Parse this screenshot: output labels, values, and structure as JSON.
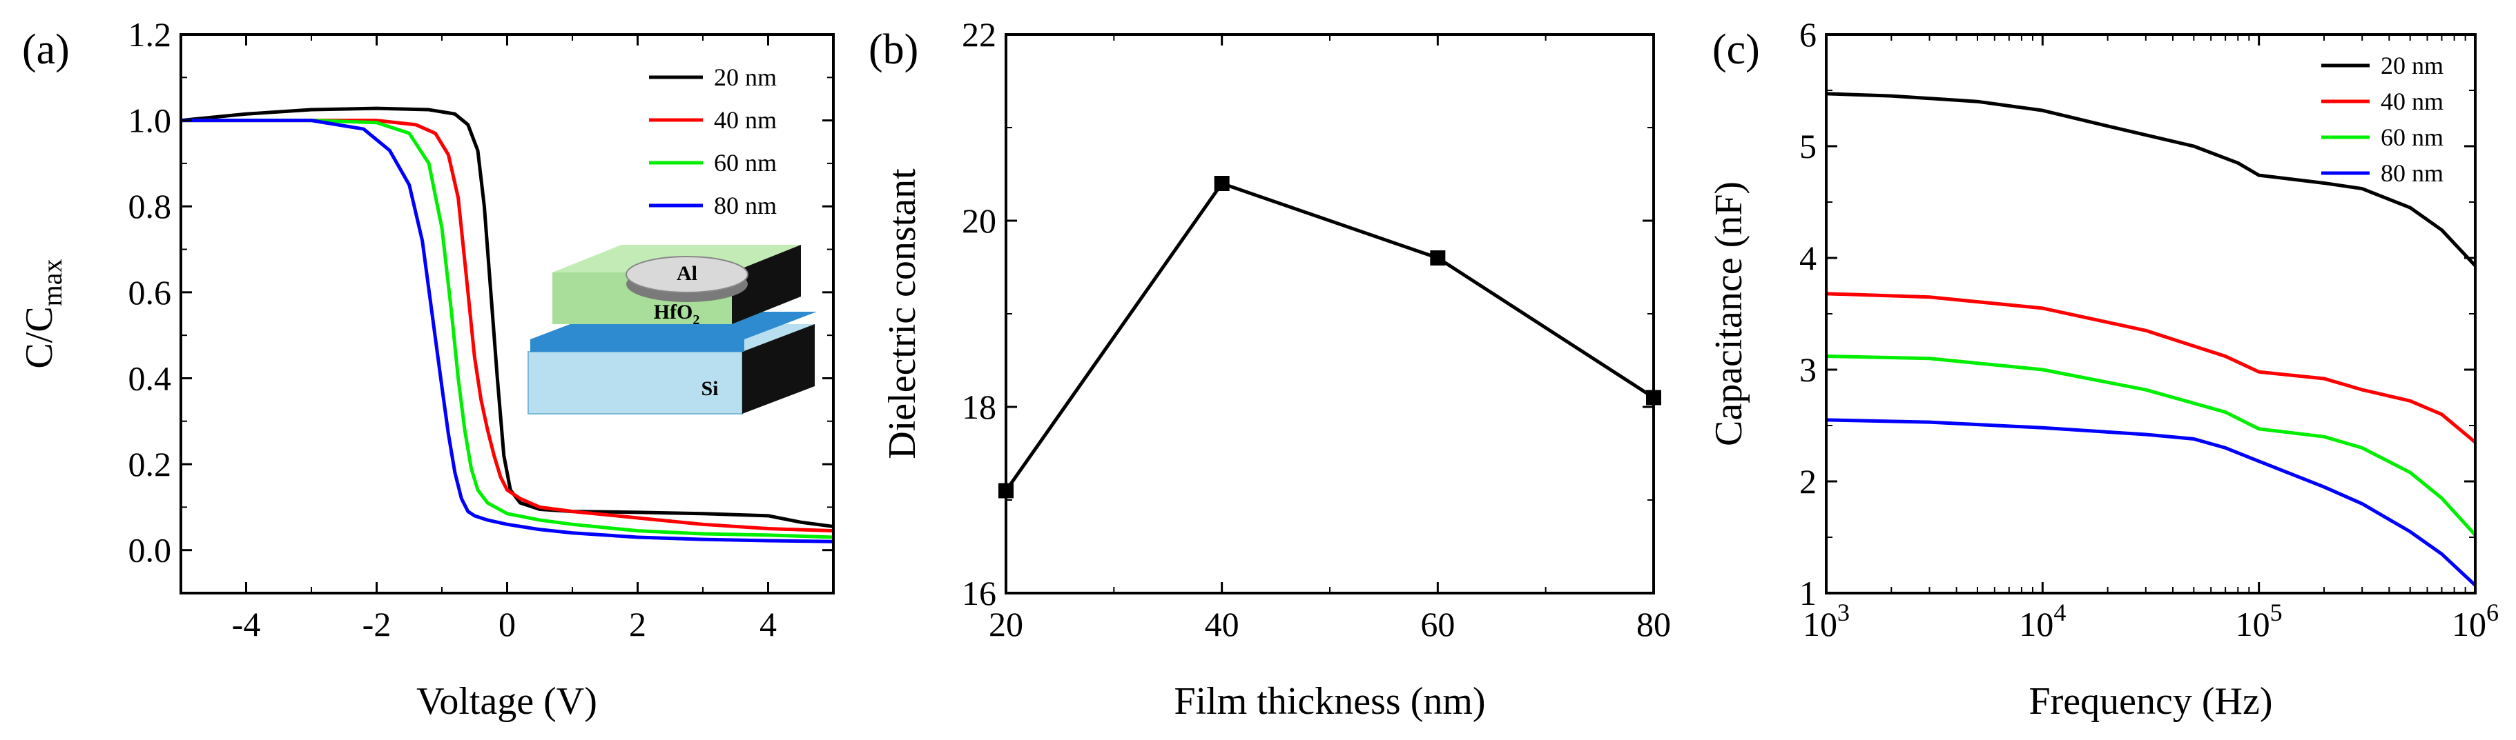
{
  "chart_data": [
    {
      "panel": "(a)",
      "type": "line",
      "xlabel": "Voltage (V)",
      "ylabel": "C/C",
      "ylabel_sub": "max",
      "xlim": [
        -5,
        5
      ],
      "ylim": [
        -0.1,
        1.2
      ],
      "xticks": [
        -4,
        -2,
        0,
        2,
        4
      ],
      "yticks": [
        0.0,
        0.2,
        0.4,
        0.6,
        0.8,
        1.0,
        1.2
      ],
      "xtick_labels": [
        "-4",
        "-2",
        "0",
        "2",
        "4"
      ],
      "ytick_labels": [
        "0.0",
        "0.2",
        "0.4",
        "0.6",
        "0.8",
        "1.0",
        "1.2"
      ],
      "legend_position": "top-right",
      "series": [
        {
          "name": "20 nm",
          "color": "#000000",
          "x": [
            -5,
            -4,
            -3,
            -2,
            -1.2,
            -0.8,
            -0.6,
            -0.45,
            -0.35,
            -0.25,
            -0.15,
            -0.05,
            0.05,
            0.2,
            0.5,
            1,
            2,
            3,
            4,
            4.5,
            5
          ],
          "y": [
            1.0,
            1.015,
            1.025,
            1.028,
            1.025,
            1.015,
            0.99,
            0.93,
            0.8,
            0.6,
            0.4,
            0.22,
            0.14,
            0.11,
            0.095,
            0.09,
            0.088,
            0.085,
            0.08,
            0.065,
            0.055
          ]
        },
        {
          "name": "40 nm",
          "color": "#ff0000",
          "x": [
            -5,
            -3,
            -2,
            -1.4,
            -1.1,
            -0.9,
            -0.75,
            -0.6,
            -0.5,
            -0.4,
            -0.3,
            -0.2,
            -0.1,
            0,
            0.2,
            0.5,
            1,
            2,
            3,
            4,
            5
          ],
          "y": [
            1.0,
            1.0,
            1.0,
            0.99,
            0.97,
            0.92,
            0.82,
            0.6,
            0.45,
            0.35,
            0.28,
            0.22,
            0.17,
            0.14,
            0.12,
            0.1,
            0.09,
            0.075,
            0.06,
            0.05,
            0.045
          ]
        },
        {
          "name": "60 nm",
          "color": "#00ee00",
          "x": [
            -5,
            -3,
            -2,
            -1.5,
            -1.2,
            -1.0,
            -0.85,
            -0.75,
            -0.65,
            -0.55,
            -0.45,
            -0.3,
            0,
            0.5,
            1,
            2,
            3,
            4,
            5
          ],
          "y": [
            1.0,
            1.0,
            0.995,
            0.97,
            0.9,
            0.75,
            0.55,
            0.4,
            0.28,
            0.19,
            0.14,
            0.11,
            0.085,
            0.07,
            0.06,
            0.045,
            0.038,
            0.035,
            0.03
          ]
        },
        {
          "name": "80 nm",
          "color": "#0000ff",
          "x": [
            -5,
            -3,
            -2.2,
            -1.8,
            -1.5,
            -1.3,
            -1.15,
            -1.0,
            -0.9,
            -0.8,
            -0.7,
            -0.6,
            -0.5,
            -0.3,
            0,
            0.5,
            1,
            2,
            3,
            4,
            5
          ],
          "y": [
            1.0,
            1.0,
            0.98,
            0.93,
            0.85,
            0.72,
            0.55,
            0.38,
            0.27,
            0.18,
            0.12,
            0.09,
            0.08,
            0.07,
            0.06,
            0.048,
            0.04,
            0.03,
            0.025,
            0.022,
            0.02
          ]
        }
      ],
      "inset_labels": {
        "top": "Al",
        "middle": "HfO",
        "middle_sub": "2",
        "bottom": "Si"
      }
    },
    {
      "panel": "(b)",
      "type": "line",
      "xlabel": "Film thickness (nm)",
      "ylabel": "Dielectric constant",
      "xlim": [
        20,
        80
      ],
      "ylim": [
        16,
        22
      ],
      "xticks": [
        20,
        40,
        60,
        80
      ],
      "yticks": [
        16,
        18,
        20,
        22
      ],
      "xtick_labels": [
        "20",
        "40",
        "60",
        "80"
      ],
      "ytick_labels": [
        "16",
        "18",
        "20",
        "22"
      ],
      "series": [
        {
          "name": "Dielectric constant",
          "color": "#000000",
          "marker": "square",
          "x": [
            20,
            40,
            60,
            80
          ],
          "y": [
            17.1,
            20.4,
            19.6,
            18.1
          ]
        }
      ]
    },
    {
      "panel": "(c)",
      "type": "line",
      "xscale": "log",
      "xlabel": "Frequency (Hz)",
      "ylabel": "Capacitance (nF)",
      "xlim": [
        1000,
        1000000
      ],
      "ylim": [
        1,
        6
      ],
      "xticks": [
        1000,
        10000,
        100000,
        1000000
      ],
      "xtick_base": [
        "10",
        "10",
        "10",
        "10"
      ],
      "xtick_exp": [
        "3",
        "4",
        "5",
        "6"
      ],
      "yticks": [
        1,
        2,
        3,
        4,
        5,
        6
      ],
      "ytick_labels": [
        "1",
        "2",
        "3",
        "4",
        "5",
        "6"
      ],
      "legend_position": "top-right",
      "series": [
        {
          "name": "20 nm",
          "color": "#000000",
          "x": [
            1000,
            2000,
            5000,
            10000,
            20000,
            50000,
            80000,
            100000,
            200000,
            300000,
            500000,
            700000,
            1000000
          ],
          "y": [
            5.47,
            5.45,
            5.4,
            5.32,
            5.18,
            5.0,
            4.85,
            4.74,
            4.67,
            4.62,
            4.45,
            4.25,
            3.93
          ]
        },
        {
          "name": "40 nm",
          "color": "#ff0000",
          "x": [
            1000,
            3000,
            10000,
            30000,
            70000,
            100000,
            200000,
            300000,
            500000,
            700000,
            1000000
          ],
          "y": [
            3.68,
            3.65,
            3.55,
            3.35,
            3.12,
            2.98,
            2.92,
            2.82,
            2.72,
            2.6,
            2.35
          ]
        },
        {
          "name": "60 nm",
          "color": "#00ee00",
          "x": [
            1000,
            3000,
            10000,
            30000,
            70000,
            100000,
            200000,
            300000,
            500000,
            700000,
            1000000
          ],
          "y": [
            3.12,
            3.1,
            3.0,
            2.82,
            2.62,
            2.47,
            2.4,
            2.3,
            2.08,
            1.85,
            1.52
          ]
        },
        {
          "name": "80 nm",
          "color": "#0000ff",
          "x": [
            1000,
            3000,
            10000,
            30000,
            50000,
            70000,
            100000,
            200000,
            300000,
            500000,
            700000,
            1000000
          ],
          "y": [
            2.55,
            2.53,
            2.48,
            2.42,
            2.38,
            2.3,
            2.18,
            1.95,
            1.8,
            1.55,
            1.35,
            1.07
          ]
        }
      ]
    }
  ]
}
